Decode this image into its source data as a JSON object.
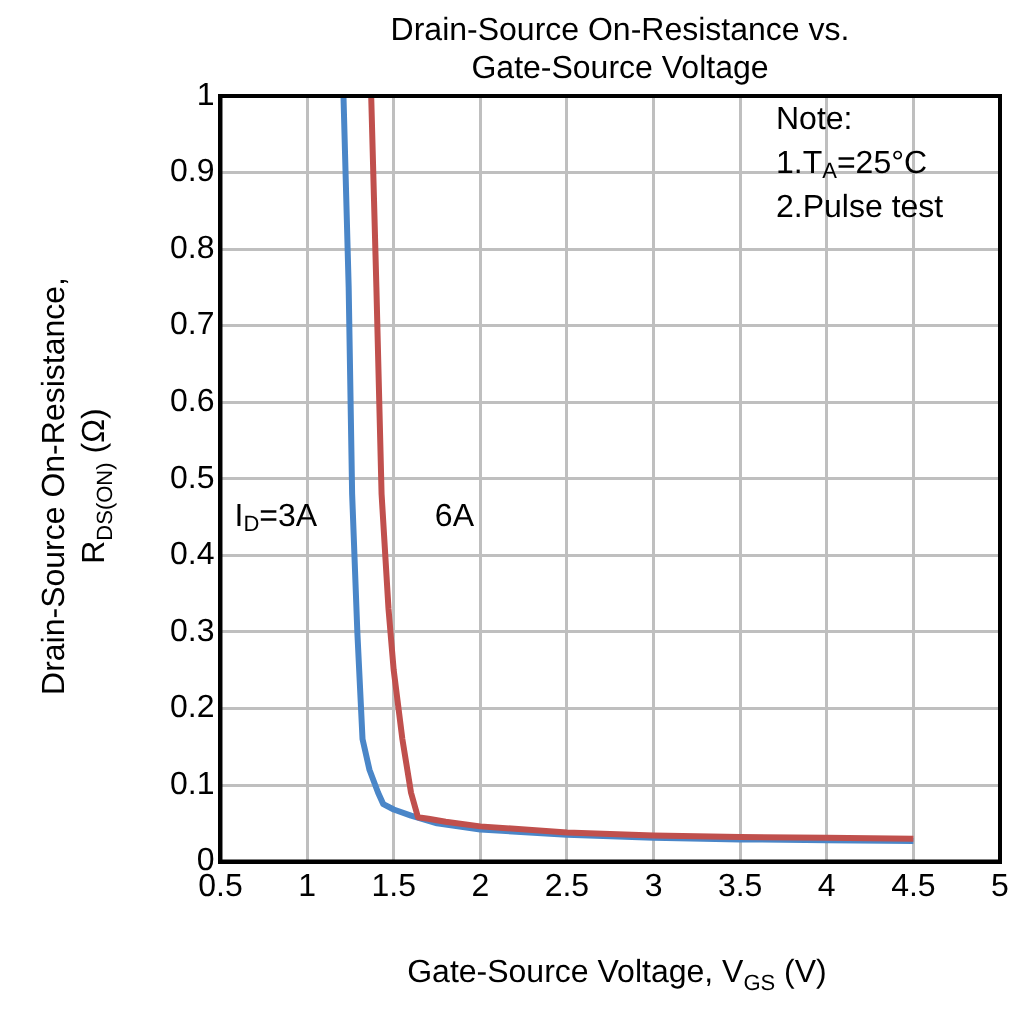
{
  "chart_data": {
    "type": "line",
    "title": "Drain-Source On-Resistance vs. Gate-Source Voltage",
    "xlabel": "Gate-Source Voltage, V$_{GS}$ (V)",
    "ylabel": "Drain-Source On-Resistance, R$_{DS(ON)}$ (Ω)",
    "series": [
      {
        "color": "#4a86c8",
        "x": [
          1.21,
          1.24,
          1.26,
          1.29,
          1.32,
          1.36,
          1.41,
          1.44,
          1.5,
          1.6,
          1.75,
          2.0,
          2.5,
          3.0,
          3.5,
          4.0,
          4.5
        ],
        "values": [
          1,
          0.75,
          0.48,
          0.3,
          0.16,
          0.12,
          0.09,
          0.075,
          0.068,
          0.06,
          0.05,
          0.042,
          0.035,
          0.031,
          0.029,
          0.028,
          0.027
        ]
      },
      {
        "color": "#c0504d",
        "x": [
          1.37,
          1.4,
          1.43,
          1.47,
          1.5,
          1.55,
          1.6,
          1.64,
          1.7,
          1.8,
          2.0,
          2.5,
          3.0,
          3.5,
          4.0,
          4.5
        ],
        "values": [
          1,
          0.75,
          0.48,
          0.33,
          0.25,
          0.16,
          0.09,
          0.058,
          0.056,
          0.052,
          0.046,
          0.038,
          0.034,
          0.032,
          0.031,
          0.03
        ]
      }
    ],
    "xlim": [
      0.5,
      5
    ],
    "xticks": [
      0.5,
      1,
      1.5,
      2,
      2.5,
      3,
      3.5,
      4,
      4.5,
      5
    ],
    "ylim": [
      0,
      1
    ],
    "yticks": [
      0,
      0.1,
      0.2,
      0.3,
      0.4,
      0.5,
      0.6,
      0.7,
      0.8,
      0.9,
      1
    ],
    "grid": true,
    "legend": false,
    "marker": "none",
    "line_style": "solid",
    "annotations": [
      "I$_{D}$=3A",
      "6A",
      "Note:",
      "1.T$_{A}$=25°C",
      "2.Pulse test"
    ]
  }
}
